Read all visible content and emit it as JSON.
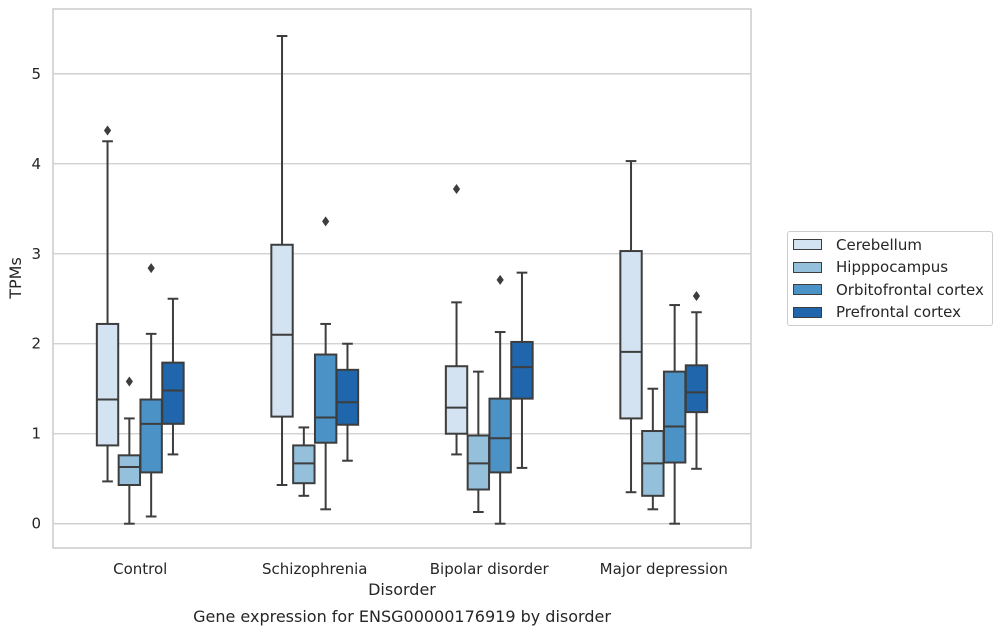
{
  "chart_data": {
    "type": "boxplot",
    "caption": "Gene expression for ENSG00000176919 by disorder",
    "xlabel": "Disorder",
    "ylabel": "TPMs",
    "ylim": [
      -0.27,
      5.72
    ],
    "yticks": [
      "0",
      "1",
      "2",
      "3",
      "4",
      "5"
    ],
    "categories": [
      "Control",
      "Schizophrenia",
      "Bipolar disorder",
      "Major depression"
    ],
    "grid": "horizontal",
    "legend_position": "right",
    "series": [
      {
        "name": "Cerebellum",
        "color": "#d3e3f2",
        "boxes": [
          {
            "whislo": 0.47,
            "q1": 0.87,
            "med": 1.38,
            "q3": 2.22,
            "whishi": 4.25,
            "fliers": [
              4.37
            ]
          },
          {
            "whislo": 0.43,
            "q1": 1.19,
            "med": 2.1,
            "q3": 3.1,
            "whishi": 5.42,
            "fliers": []
          },
          {
            "whislo": 0.77,
            "q1": 1.0,
            "med": 1.29,
            "q3": 1.75,
            "whishi": 2.46,
            "fliers": [
              3.72
            ]
          },
          {
            "whislo": 0.35,
            "q1": 1.17,
            "med": 1.91,
            "q3": 3.03,
            "whishi": 4.03,
            "fliers": []
          }
        ]
      },
      {
        "name": "Hipppocampus",
        "color": "#94c0dc",
        "boxes": [
          {
            "whislo": 0.0,
            "q1": 0.43,
            "med": 0.63,
            "q3": 0.76,
            "whishi": 1.17,
            "fliers": [
              1.58
            ]
          },
          {
            "whislo": 0.31,
            "q1": 0.45,
            "med": 0.67,
            "q3": 0.87,
            "whishi": 1.07,
            "fliers": []
          },
          {
            "whislo": 0.13,
            "q1": 0.38,
            "med": 0.67,
            "q3": 0.98,
            "whishi": 1.69,
            "fliers": []
          },
          {
            "whislo": 0.16,
            "q1": 0.31,
            "med": 0.67,
            "q3": 1.03,
            "whishi": 1.5,
            "fliers": []
          }
        ]
      },
      {
        "name": "Orbitofrontal cortex",
        "color": "#4b92c6",
        "boxes": [
          {
            "whislo": 0.08,
            "q1": 0.57,
            "med": 1.11,
            "q3": 1.38,
            "whishi": 2.11,
            "fliers": [
              2.84
            ]
          },
          {
            "whislo": 0.16,
            "q1": 0.9,
            "med": 1.18,
            "q3": 1.88,
            "whishi": 2.22,
            "fliers": [
              3.36
            ]
          },
          {
            "whislo": 0.0,
            "q1": 0.57,
            "med": 0.95,
            "q3": 1.39,
            "whishi": 2.13,
            "fliers": [
              2.71
            ]
          },
          {
            "whislo": 0.0,
            "q1": 0.68,
            "med": 1.08,
            "q3": 1.69,
            "whishi": 2.43,
            "fliers": []
          }
        ]
      },
      {
        "name": "Prefrontal cortex",
        "color": "#2066ac",
        "boxes": [
          {
            "whislo": 0.77,
            "q1": 1.11,
            "med": 1.48,
            "q3": 1.79,
            "whishi": 2.5,
            "fliers": []
          },
          {
            "whislo": 0.7,
            "q1": 1.1,
            "med": 1.35,
            "q3": 1.71,
            "whishi": 2.0,
            "fliers": []
          },
          {
            "whislo": 0.62,
            "q1": 1.39,
            "med": 1.74,
            "q3": 2.02,
            "whishi": 2.79,
            "fliers": []
          },
          {
            "whislo": 0.61,
            "q1": 1.24,
            "med": 1.46,
            "q3": 1.76,
            "whishi": 2.35,
            "fliers": [
              2.53
            ]
          }
        ]
      }
    ]
  }
}
